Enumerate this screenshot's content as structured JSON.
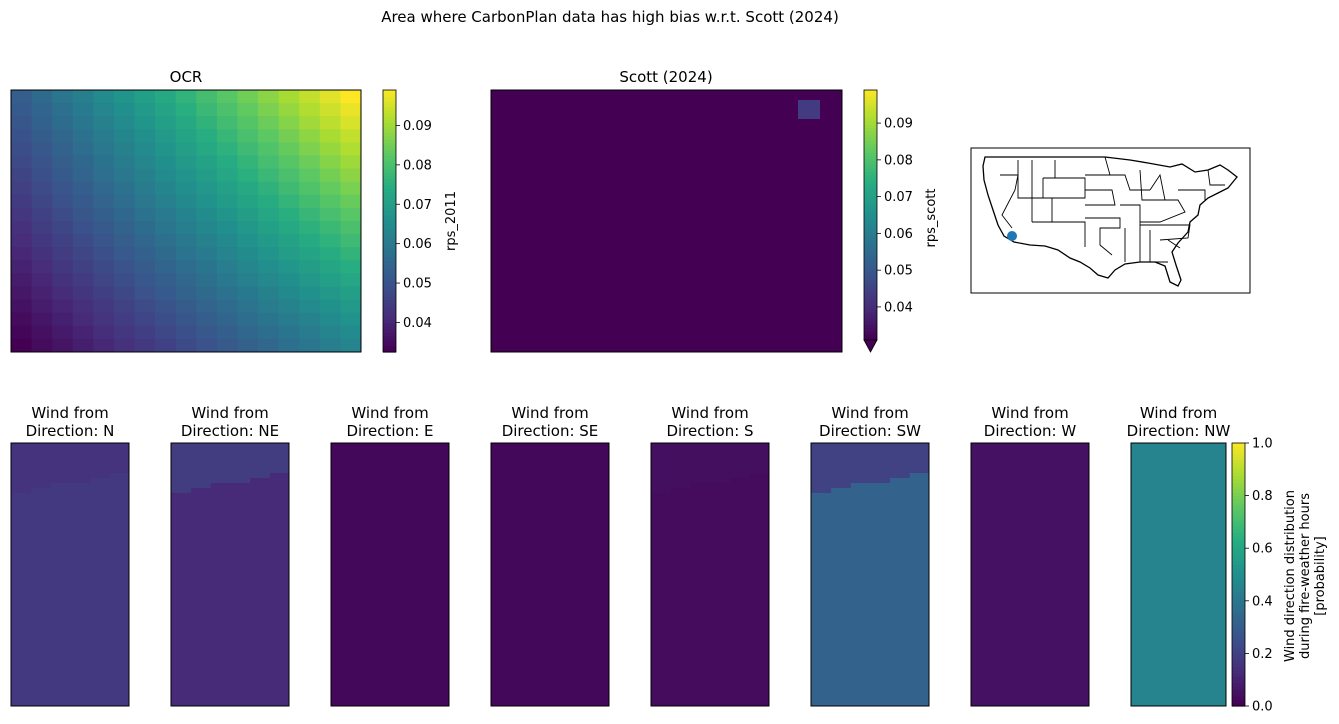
{
  "chart_data": {
    "suptitle": "Area where CarbonPlan data has high bias w.r.t. Scott (2024)",
    "colormap": "viridis",
    "maps": [
      {
        "type": "heatmap",
        "title": "OCR",
        "colorbar_label": "rps_2011",
        "vmin": 0.0325,
        "vmax": 0.099,
        "colorbar_ticks": [
          "0.04",
          "0.05",
          "0.06",
          "0.07",
          "0.08",
          "0.09"
        ],
        "colorbar_tick_values": [
          0.04,
          0.05,
          0.06,
          0.07,
          0.08,
          0.09
        ],
        "extend_min": false,
        "grid_size": [
          20,
          17
        ],
        "description": "Values increase from lower-left (~0.033) toward upper-right (~0.099)"
      },
      {
        "type": "heatmap",
        "title": "Scott (2024)",
        "colorbar_label": "rps_scott",
        "vmin": 0.031,
        "vmax": 0.099,
        "colorbar_ticks": [
          "0.04",
          "0.05",
          "0.06",
          "0.07",
          "0.08",
          "0.09"
        ],
        "colorbar_tick_values": [
          0.04,
          0.05,
          0.06,
          0.07,
          0.08,
          0.09
        ],
        "extend_min": true,
        "background_value": 0.028,
        "highlight_value": 0.043
      }
    ],
    "location_marker": {
      "lon": -117.3,
      "lat": 34.1,
      "color": "#1f77b4"
    },
    "wind": {
      "type": "heatmap",
      "directions": [
        "N",
        "NE",
        "E",
        "SE",
        "S",
        "SW",
        "W",
        "NW"
      ],
      "title_prefix": "Wind from",
      "title_line2_prefix": "Direction: ",
      "upper_values": [
        0.15,
        0.18,
        0.02,
        0.02,
        0.04,
        0.2,
        0.05,
        0.45
      ],
      "lower_values": [
        0.17,
        0.12,
        0.02,
        0.02,
        0.03,
        0.32,
        0.05,
        0.45
      ],
      "vmin": 0.0,
      "vmax": 1.0,
      "colorbar_ticks": [
        "0.0",
        "0.2",
        "0.4",
        "0.6",
        "0.8",
        "1.0"
      ],
      "colorbar_tick_values": [
        0.0,
        0.2,
        0.4,
        0.6,
        0.8,
        1.0
      ],
      "colorbar_label_lines": [
        "Wind direction distribution",
        "during fire-weather hours",
        "[probability]"
      ]
    }
  }
}
